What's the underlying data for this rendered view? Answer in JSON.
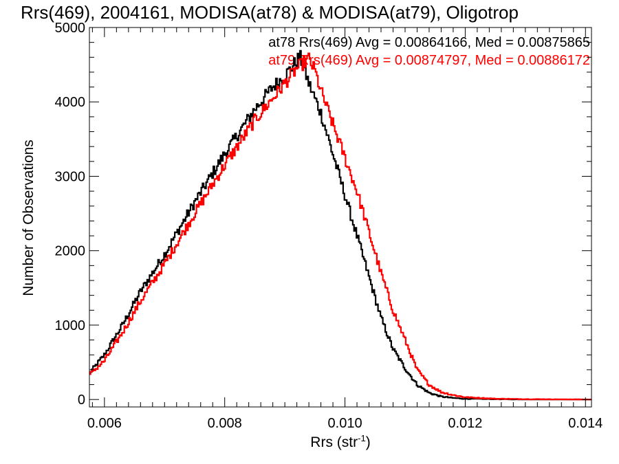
{
  "chart_data": {
    "type": "line",
    "title": "Rrs(469), 2004161, MODISA(at78) & MODISA(at79), Oligotrop",
    "xlabel": "Rrs (str",
    "xlabel_sup": "-1",
    "xlabel_close": ")",
    "ylabel": "Number of Observations",
    "xlim": [
      0.00575,
      0.0141
    ],
    "ylim": [
      -100,
      5000
    ],
    "x_ticks": [
      0.006,
      0.008,
      0.01,
      0.012,
      0.014
    ],
    "x_tick_labels": [
      "0.006",
      "0.008",
      "0.010",
      "0.012",
      "0.014"
    ],
    "y_ticks": [
      0,
      1000,
      2000,
      3000,
      4000,
      5000
    ],
    "y_tick_labels": [
      "0",
      "1000",
      "2000",
      "3000",
      "4000",
      "5000"
    ],
    "grid": false,
    "legend": "top-right",
    "annotations": [
      {
        "text": "at78 Rrs(469) Avg = 0.00864166, Med = 0.00875865",
        "color": "#000000"
      },
      {
        "text": "at79 Rrs(469) Avg = 0.00874797, Med = 0.00886172",
        "color": "#ff0000"
      }
    ],
    "series": [
      {
        "name": "at78",
        "color": "#000000",
        "x": [
          0.00575,
          0.006,
          0.0063,
          0.0066,
          0.007,
          0.0075,
          0.008,
          0.0085,
          0.0088,
          0.009,
          0.0092,
          0.00925,
          0.0094,
          0.0096,
          0.0098,
          0.01,
          0.0102,
          0.0104,
          0.0106,
          0.0108,
          0.011,
          0.0112,
          0.0114,
          0.0116,
          0.0118,
          0.012,
          0.0125,
          0.013,
          0.0141
        ],
        "y": [
          350,
          600,
          1000,
          1450,
          1950,
          2650,
          3300,
          3900,
          4200,
          4350,
          4550,
          4620,
          4250,
          3850,
          3300,
          2750,
          2200,
          1650,
          1100,
          680,
          420,
          200,
          90,
          40,
          20,
          10,
          5,
          0,
          0
        ]
      },
      {
        "name": "at79",
        "color": "#ff0000",
        "x": [
          0.00575,
          0.006,
          0.0063,
          0.0066,
          0.007,
          0.0075,
          0.008,
          0.0085,
          0.0088,
          0.009,
          0.0092,
          0.0094,
          0.0095,
          0.0096,
          0.0098,
          0.01,
          0.0102,
          0.0104,
          0.0106,
          0.0108,
          0.011,
          0.0112,
          0.0114,
          0.0116,
          0.0118,
          0.012,
          0.0125,
          0.013,
          0.0141
        ],
        "y": [
          330,
          520,
          900,
          1320,
          1820,
          2500,
          3150,
          3750,
          4050,
          4250,
          4450,
          4580,
          4420,
          4150,
          3700,
          3250,
          2800,
          2250,
          1700,
          1200,
          800,
          400,
          200,
          100,
          60,
          30,
          10,
          5,
          0
        ]
      }
    ]
  }
}
